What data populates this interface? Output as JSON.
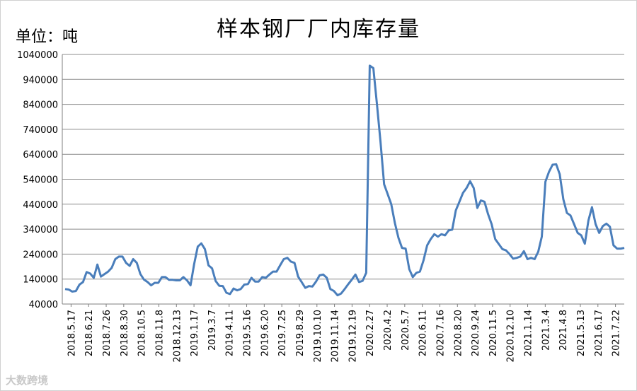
{
  "chart_data": {
    "type": "line",
    "title": "样本钢厂厂内库存量",
    "unit_label": "单位：吨",
    "ylim": [
      40000,
      1040000
    ],
    "y_ticks": [
      40000,
      140000,
      240000,
      340000,
      440000,
      540000,
      640000,
      740000,
      840000,
      940000,
      1040000
    ],
    "y_tick_labels": [
      "40000",
      "140000",
      "240000",
      "340000",
      "440000",
      "540000",
      "640000",
      "740000",
      "840000",
      "940000",
      "1040000"
    ],
    "x_tick_labels": [
      "2018.5.17",
      "2018.6.21",
      "2018.7.26",
      "2018.8.30",
      "2018.10.5",
      "2018.11.8",
      "2018.12.13",
      "2019.1.17",
      "2019.3.7",
      "2019.4.11",
      "2019.5.16",
      "2019.6.20",
      "2019.7.25",
      "2019.8.29",
      "2019.10.10",
      "2019.11.14",
      "2019.12.19",
      "2020.2.27",
      "2020.4.2",
      "2020.5.7",
      "2020.6.11",
      "2020.7.16",
      "2020.8.20",
      "2020.9.24",
      "2020.11.5",
      "2020.12.10",
      "2021.1.14",
      "2021.3.4",
      "2021.4.8",
      "2021.5.13",
      "2021.6.17",
      "2021.7.22"
    ],
    "grid": true,
    "line_color": "#4a7ebb",
    "series": [
      {
        "values": [
          100000,
          98000,
          90000,
          92000,
          118000,
          128000,
          168000,
          162000,
          145000,
          198000,
          150000,
          160000,
          170000,
          185000,
          220000,
          230000,
          230000,
          205000,
          193000,
          220000,
          205000,
          160000,
          138000,
          128000,
          115000,
          125000,
          125000,
          148000,
          148000,
          137000,
          137000,
          135000,
          135000,
          148000,
          135000,
          115000,
          200000,
          270000,
          283000,
          260000,
          195000,
          183000,
          132000,
          113000,
          112000,
          85000,
          80000,
          102000,
          95000,
          100000,
          118000,
          120000,
          145000,
          130000,
          130000,
          148000,
          145000,
          158000,
          170000,
          170000,
          195000,
          220000,
          225000,
          210000,
          205000,
          150000,
          128000,
          105000,
          112000,
          110000,
          130000,
          155000,
          158000,
          145000,
          100000,
          92000,
          75000,
          82000,
          100000,
          120000,
          138000,
          158000,
          128000,
          133000,
          165000,
          995000,
          985000,
          840000,
          690000,
          520000,
          480000,
          440000,
          365000,
          305000,
          265000,
          262000,
          180000,
          148000,
          165000,
          170000,
          215000,
          275000,
          300000,
          320000,
          310000,
          320000,
          315000,
          335000,
          338000,
          415000,
          450000,
          485000,
          505000,
          532000,
          505000,
          425000,
          455000,
          450000,
          400000,
          360000,
          300000,
          280000,
          260000,
          255000,
          240000,
          222000,
          225000,
          230000,
          252000,
          220000,
          225000,
          220000,
          250000,
          310000,
          530000,
          570000,
          598000,
          600000,
          560000,
          460000,
          405000,
          395000,
          360000,
          325000,
          315000,
          282000,
          375000,
          428000,
          360000,
          325000,
          352000,
          362000,
          350000,
          275000,
          262000,
          262000,
          265000
        ]
      }
    ]
  },
  "watermark": "大数跨境"
}
